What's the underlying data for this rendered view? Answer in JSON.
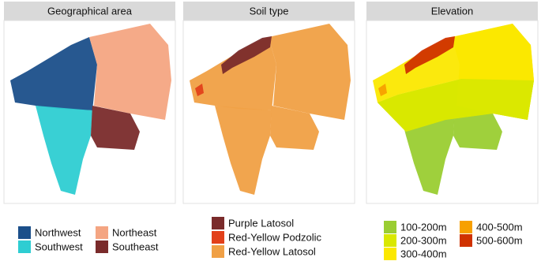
{
  "panels": [
    {
      "title": "Geographical area",
      "legend": [
        {
          "label": "Northwest",
          "color": "#1b4f8a"
        },
        {
          "label": "Northeast",
          "color": "#f4a582"
        },
        {
          "label": "Southwest",
          "color": "#2ecdd2"
        },
        {
          "label": "Southeast",
          "color": "#7a2b2b"
        }
      ]
    },
    {
      "title": "Soil type",
      "legend": [
        {
          "label": "Purple Latosol",
          "color": "#7a2b2b"
        },
        {
          "label": "Red-Yellow Podzolic",
          "color": "#e2401a"
        },
        {
          "label": "Red-Yellow Latosol",
          "color": "#f0a045"
        }
      ]
    },
    {
      "title": "Elevation",
      "legend": [
        {
          "label": "100-200m",
          "color": "#9acd32"
        },
        {
          "label": "200-300m",
          "color": "#d9e800"
        },
        {
          "label": "300-400m",
          "color": "#fbe800"
        },
        {
          "label": "400-500m",
          "color": "#f7a000"
        },
        {
          "label": "500-600m",
          "color": "#d03200"
        }
      ]
    }
  ]
}
